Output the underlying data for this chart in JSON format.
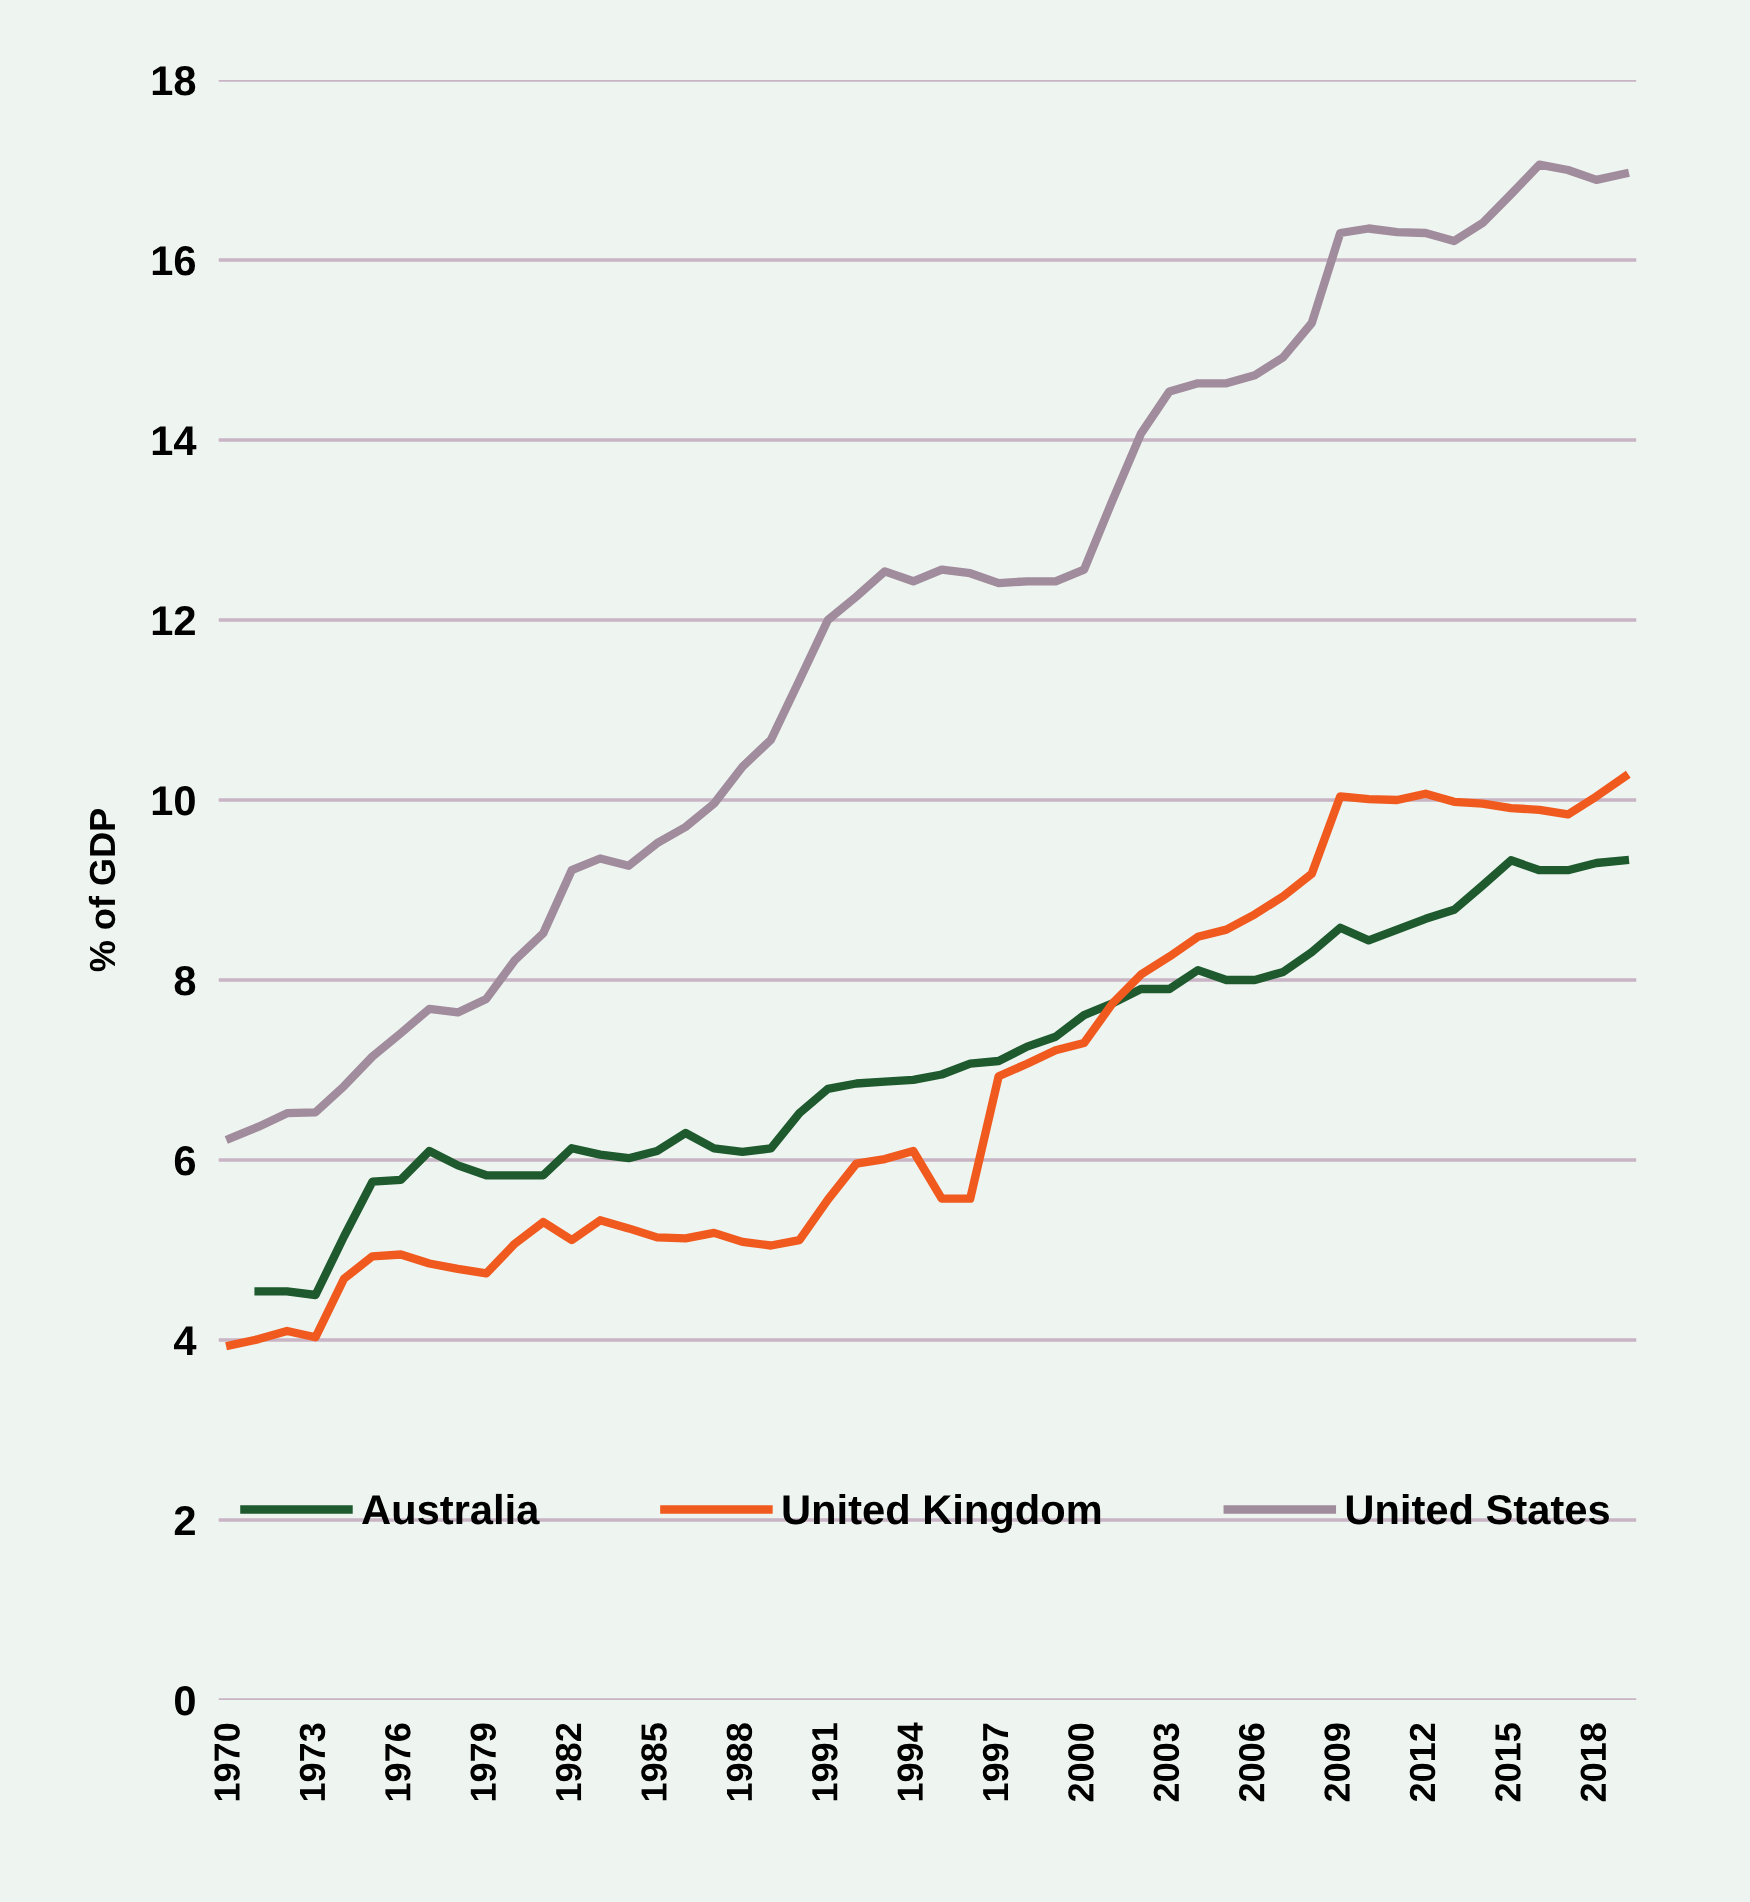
{
  "chart_data": {
    "type": "line",
    "ylabel": "% of GDP",
    "x": [
      1970,
      1971,
      1972,
      1973,
      1974,
      1975,
      1976,
      1977,
      1978,
      1979,
      1980,
      1981,
      1982,
      1983,
      1984,
      1985,
      1986,
      1987,
      1988,
      1989,
      1990,
      1991,
      1992,
      1993,
      1994,
      1995,
      1996,
      1997,
      1998,
      1999,
      2000,
      2001,
      2002,
      2003,
      2004,
      2005,
      2006,
      2007,
      2008,
      2009,
      2010,
      2011,
      2012,
      2013,
      2014,
      2015,
      2016,
      2017,
      2018,
      2019
    ],
    "series": [
      {
        "name": "Australia",
        "color": "#1e5a2e",
        "values": [
          null,
          4.54,
          4.54,
          4.5,
          5.15,
          5.76,
          5.78,
          6.1,
          5.94,
          5.83,
          5.83,
          5.83,
          6.13,
          6.06,
          6.02,
          6.1,
          6.3,
          6.13,
          6.09,
          6.13,
          6.52,
          6.79,
          6.85,
          6.87,
          6.89,
          6.95,
          7.07,
          7.1,
          7.26,
          7.37,
          7.61,
          7.74,
          7.9,
          7.9,
          8.11,
          8.0,
          8.0,
          8.09,
          8.31,
          8.58,
          8.44,
          8.56,
          8.68,
          8.78,
          9.05,
          9.33,
          9.22,
          9.22,
          9.3,
          9.33
        ]
      },
      {
        "name": "United Kingdom",
        "color": "#f05a1e",
        "values": [
          3.94,
          4.01,
          4.1,
          4.03,
          4.68,
          4.93,
          4.95,
          4.85,
          4.79,
          4.74,
          5.07,
          5.31,
          5.11,
          5.33,
          5.24,
          5.14,
          5.13,
          5.19,
          5.09,
          5.05,
          5.11,
          5.56,
          5.96,
          6.01,
          6.1,
          5.57,
          5.57,
          6.93,
          7.07,
          7.22,
          7.3,
          7.74,
          8.06,
          8.26,
          8.48,
          8.56,
          8.73,
          8.93,
          9.18,
          10.04,
          10.01,
          10.0,
          10.07,
          9.98,
          9.96,
          9.91,
          9.89,
          9.84,
          10.04,
          10.26
        ]
      },
      {
        "name": "United States",
        "color": "#a08c9c",
        "values": [
          6.24,
          6.37,
          6.52,
          6.53,
          6.82,
          7.15,
          7.41,
          7.68,
          7.64,
          7.79,
          8.22,
          8.52,
          9.22,
          9.35,
          9.27,
          9.52,
          9.7,
          9.96,
          10.37,
          10.67,
          11.33,
          12.0,
          12.26,
          12.54,
          12.43,
          12.56,
          12.52,
          12.41,
          12.43,
          12.43,
          12.56,
          13.33,
          14.07,
          14.54,
          14.63,
          14.63,
          14.72,
          14.92,
          15.3,
          16.3,
          16.35,
          16.31,
          16.3,
          16.21,
          16.41,
          16.73,
          17.06,
          17.0,
          16.89,
          16.96
        ]
      }
    ],
    "xlim": [
      1969.6,
      2019.4
    ],
    "xticks": [
      1970,
      1973,
      1976,
      1979,
      1982,
      1985,
      1988,
      1991,
      1994,
      1997,
      2000,
      2003,
      2006,
      2009,
      2012,
      2015,
      2018
    ],
    "ylim": [
      0,
      18
    ],
    "yticks": [
      0,
      2,
      4,
      6,
      8,
      10,
      12,
      14,
      16,
      18
    ],
    "grid": "y",
    "legend": "bottom",
    "line_style": "solid",
    "marker": "none"
  }
}
